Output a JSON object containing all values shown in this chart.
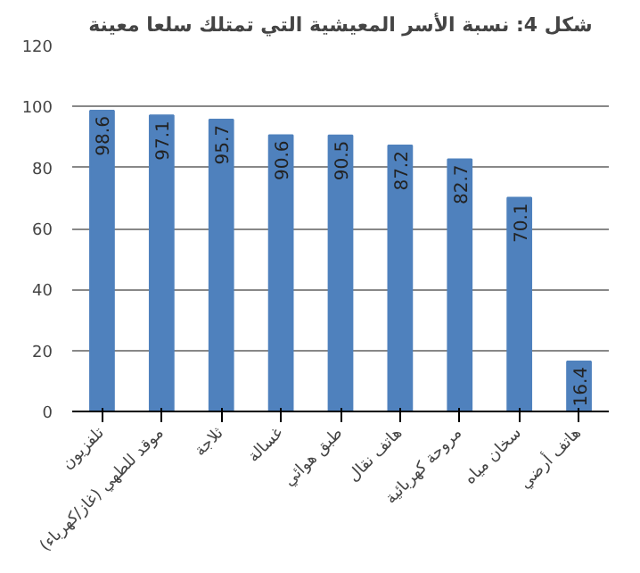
{
  "chart_data": {
    "type": "bar",
    "title": "شكل 4: نسبة الأسر المعيشية التي تمتلك سلعا معينة",
    "categories": [
      "تلفزيون",
      "موقد للطهي (غاز/كهرباء)",
      "ثلاجة",
      "غسالة",
      "طبق هوائي",
      "هاتف نقال",
      "مروحة كهربائية",
      "سخان مياه",
      "هاتف أرضي"
    ],
    "values": [
      98.6,
      97.1,
      95.7,
      90.6,
      90.5,
      87.2,
      82.7,
      70.1,
      16.4
    ],
    "color": "#4f81bd",
    "data_labels": true,
    "ylim": [
      0,
      120
    ],
    "yticks": [
      0,
      20,
      40,
      60,
      80,
      100,
      120
    ],
    "grid": "y"
  }
}
